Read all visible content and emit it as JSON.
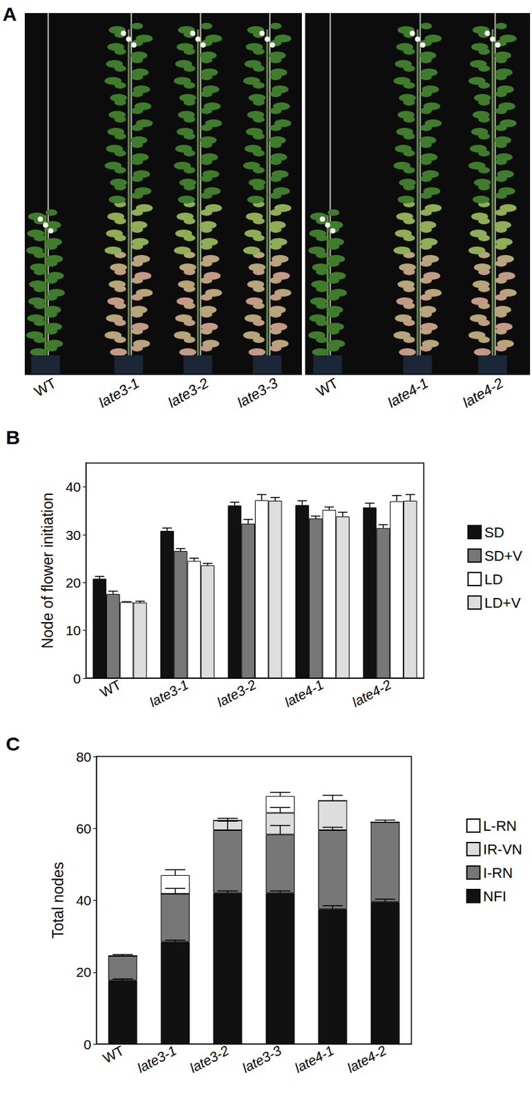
{
  "panel_a": {
    "annotations": [
      "A"
    ],
    "photos": [
      {
        "labels": [
          "WT",
          "late3-1",
          "late3-2",
          "late3-3"
        ]
      },
      {
        "labels": [
          "WT",
          "late4-1",
          "late4-2"
        ]
      }
    ]
  },
  "chart_data": [
    {
      "type": "bar",
      "annotations": [
        "B"
      ],
      "y_label": "Node of flower initiation",
      "categories": [
        "WT",
        "late3-1",
        "late3-2",
        "late4-1",
        "late4-2"
      ],
      "series": [
        {
          "name": "SD",
          "color": "#111111",
          "values": [
            20.8,
            30.8,
            36.1,
            36.2,
            35.7
          ],
          "errors": [
            0.5,
            0.6,
            0.7,
            0.9,
            0.9
          ]
        },
        {
          "name": "SD+V",
          "color": "#777777",
          "values": [
            17.6,
            26.6,
            32.3,
            33.4,
            31.4
          ],
          "errors": [
            0.6,
            0.5,
            0.9,
            0.5,
            0.7
          ]
        },
        {
          "name": "LD",
          "color": "#ffffff",
          "values": [
            15.9,
            24.5,
            37.2,
            35.2,
            37.0
          ],
          "errors": [
            0.1,
            0.6,
            1.2,
            0.6,
            1.2
          ]
        },
        {
          "name": "LD+V",
          "color": "#dddddd",
          "values": [
            15.8,
            23.6,
            37.1,
            33.8,
            37.1
          ],
          "errors": [
            0.3,
            0.4,
            0.7,
            0.9,
            1.3
          ]
        }
      ],
      "ylim": [
        0,
        45
      ],
      "yticks": [
        0,
        10,
        20,
        30,
        40
      ],
      "legend": "right",
      "grid": false
    },
    {
      "type": "bar",
      "stacked": true,
      "annotations": [
        "C"
      ],
      "y_label": "Total nodes",
      "categories": [
        "WT",
        "late3-1",
        "late3-2",
        "late3-3",
        "late4-1",
        "late4-2"
      ],
      "series": [
        {
          "name": "NFI",
          "color": "#111111",
          "values": [
            17.7,
            28.4,
            42.0,
            42.0,
            37.5,
            39.5
          ],
          "errors": [
            0.4,
            0.5,
            0.6,
            0.6,
            1.0,
            0.8
          ]
        },
        {
          "name": "I-RN",
          "color": "#777777",
          "values": [
            6.8,
            13.4,
            17.5,
            16.3,
            22.0,
            22.2
          ],
          "errors": [
            0.4,
            1.5,
            2.5,
            2.5,
            0.8,
            0.6
          ]
        },
        {
          "name": "IR-VN",
          "color": "#dddddd",
          "values": [
            0,
            0,
            2.7,
            6.0,
            8.2,
            0
          ],
          "errors": [
            null,
            null,
            0.6,
            1.5,
            1.5,
            null
          ]
        },
        {
          "name": "L-RN",
          "color": "#ffffff",
          "values": [
            0,
            5.2,
            0,
            4.7,
            0,
            0
          ],
          "errors": [
            null,
            1.5,
            null,
            1.0,
            null,
            null
          ]
        }
      ],
      "ylim": [
        0,
        80
      ],
      "yticks": [
        0,
        20,
        40,
        60,
        80
      ],
      "legend": "right",
      "grid": false
    }
  ]
}
